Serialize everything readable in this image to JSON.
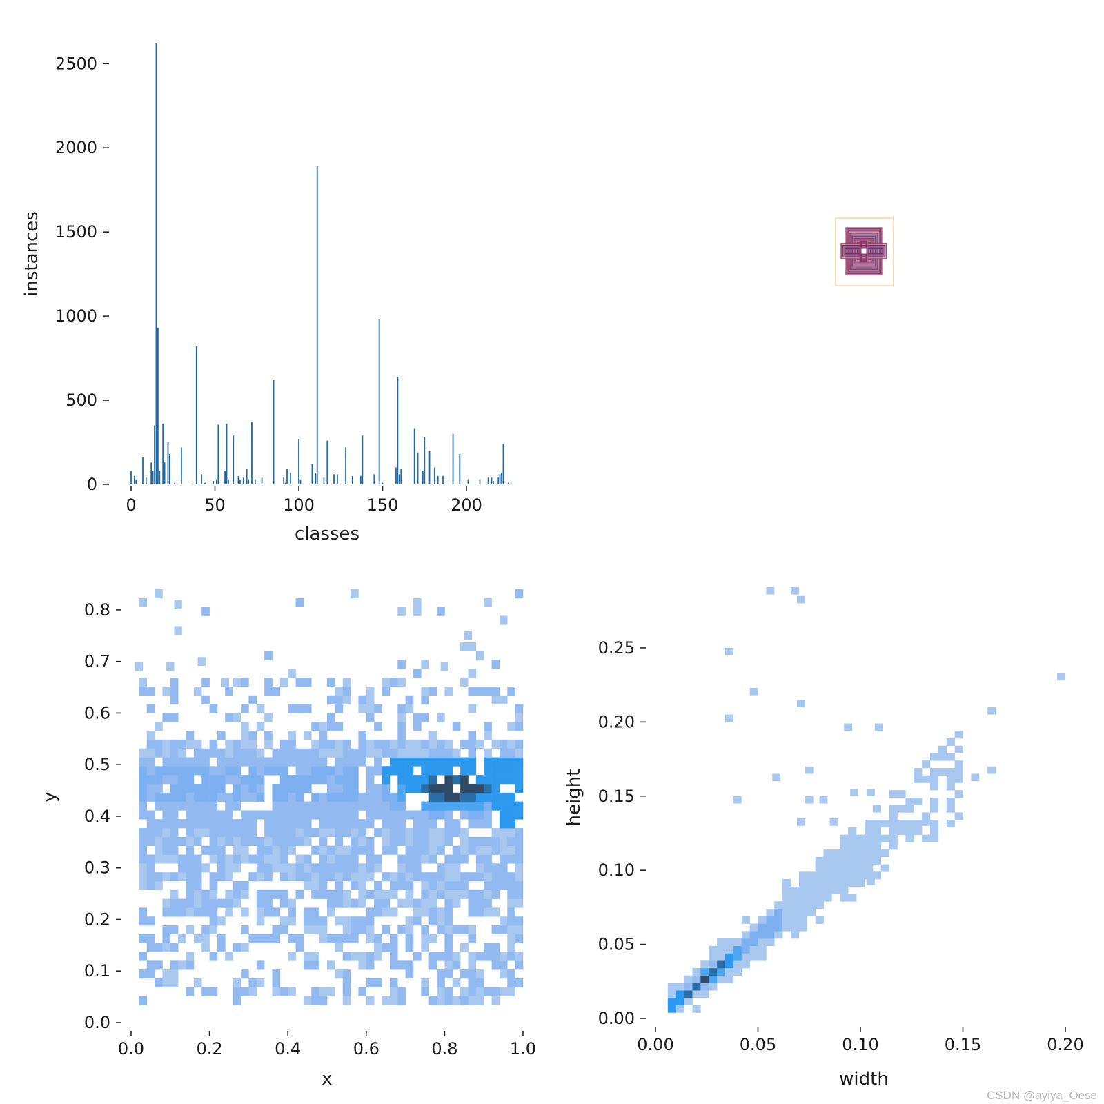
{
  "watermark": "CSDN @ayiya_Oese",
  "chart_data": [
    {
      "type": "bar",
      "panel": "classes-histogram",
      "xlabel": "classes",
      "ylabel": "instances",
      "xlim": [
        -7,
        230
      ],
      "ylim": [
        0,
        2620
      ],
      "xticks": [
        0,
        50,
        100,
        150,
        200
      ],
      "yticks": [
        0,
        500,
        1000,
        1500,
        2000,
        2500
      ],
      "color": "#1f6aa5",
      "bars": [
        [
          0,
          80
        ],
        [
          2,
          50
        ],
        [
          3,
          30
        ],
        [
          7,
          160
        ],
        [
          9,
          40
        ],
        [
          12,
          130
        ],
        [
          13,
          80
        ],
        [
          14,
          350
        ],
        [
          15,
          2620
        ],
        [
          16,
          930
        ],
        [
          17,
          80
        ],
        [
          19,
          360
        ],
        [
          20,
          130
        ],
        [
          22,
          250
        ],
        [
          23,
          180
        ],
        [
          26,
          10
        ],
        [
          30,
          220
        ],
        [
          35,
          5
        ],
        [
          39,
          820
        ],
        [
          42,
          60
        ],
        [
          44,
          10
        ],
        [
          49,
          20
        ],
        [
          51,
          30
        ],
        [
          52,
          355
        ],
        [
          56,
          80
        ],
        [
          57,
          360
        ],
        [
          58,
          30
        ],
        [
          61,
          290
        ],
        [
          64,
          50
        ],
        [
          65,
          30
        ],
        [
          67,
          40
        ],
        [
          69,
          90
        ],
        [
          70,
          30
        ],
        [
          72,
          370
        ],
        [
          74,
          30
        ],
        [
          78,
          40
        ],
        [
          85,
          620
        ],
        [
          91,
          40
        ],
        [
          92,
          10
        ],
        [
          93,
          90
        ],
        [
          95,
          70
        ],
        [
          100,
          270
        ],
        [
          101,
          30
        ],
        [
          108,
          120
        ],
        [
          110,
          70
        ],
        [
          111,
          1890
        ],
        [
          115,
          40
        ],
        [
          117,
          260
        ],
        [
          121,
          60
        ],
        [
          123,
          60
        ],
        [
          128,
          220
        ],
        [
          132,
          50
        ],
        [
          137,
          50
        ],
        [
          138,
          290
        ],
        [
          145,
          60
        ],
        [
          148,
          980
        ],
        [
          150,
          10
        ],
        [
          158,
          100
        ],
        [
          159,
          640
        ],
        [
          160,
          60
        ],
        [
          161,
          90
        ],
        [
          169,
          330
        ],
        [
          171,
          190
        ],
        [
          174,
          80
        ],
        [
          175,
          280
        ],
        [
          178,
          200
        ],
        [
          181,
          100
        ],
        [
          183,
          50
        ],
        [
          186,
          50
        ],
        [
          192,
          300
        ],
        [
          196,
          180
        ],
        [
          201,
          30
        ],
        [
          208,
          30
        ],
        [
          213,
          40
        ],
        [
          215,
          40
        ],
        [
          216,
          20
        ],
        [
          219,
          40
        ],
        [
          220,
          60
        ],
        [
          221,
          70
        ],
        [
          222,
          240
        ],
        [
          225,
          10
        ],
        [
          227,
          5
        ]
      ]
    },
    {
      "type": "heatmap",
      "panel": "xy-histogram",
      "xlabel": "x",
      "ylabel": "y",
      "xlim": [
        0.0,
        1.0
      ],
      "ylim": [
        0.0,
        0.84
      ],
      "xticks": [
        0.0,
        0.2,
        0.4,
        0.6,
        0.8,
        1.0
      ],
      "yticks": [
        0.0,
        0.1,
        0.2,
        0.3,
        0.4,
        0.5,
        0.6,
        0.7,
        0.8
      ],
      "bin_x": 0.02,
      "bin_y": 0.017
    },
    {
      "type": "heatmap",
      "panel": "width-height-histogram",
      "xlabel": "width",
      "ylabel": "height",
      "xlim": [
        0.0,
        0.2
      ],
      "ylim": [
        0.0,
        0.29
      ],
      "xticks": [
        0.0,
        0.05,
        0.1,
        0.15,
        0.2
      ],
      "yticks": [
        0.0,
        0.05,
        0.1,
        0.15,
        0.2,
        0.25
      ],
      "scatter_cells": [
        [
          0.054,
          0.286
        ],
        [
          0.066,
          0.286
        ],
        [
          0.069,
          0.28
        ],
        [
          0.034,
          0.245
        ],
        [
          0.046,
          0.218
        ],
        [
          0.069,
          0.21
        ],
        [
          0.034,
          0.2
        ],
        [
          0.196,
          0.228
        ],
        [
          0.162,
          0.205
        ],
        [
          0.092,
          0.194
        ],
        [
          0.107,
          0.194
        ],
        [
          0.073,
          0.165
        ],
        [
          0.057,
          0.16
        ],
        [
          0.038,
          0.145
        ],
        [
          0.073,
          0.145
        ],
        [
          0.08,
          0.145
        ],
        [
          0.095,
          0.15
        ],
        [
          0.103,
          0.15
        ],
        [
          0.162,
          0.165
        ],
        [
          0.154,
          0.16
        ],
        [
          0.13,
          0.13
        ],
        [
          0.069,
          0.13
        ],
        [
          0.085,
          0.13
        ],
        [
          0.103,
          0.09
        ]
      ]
    },
    {
      "type": "other",
      "panel": "box-overlay"
    }
  ]
}
